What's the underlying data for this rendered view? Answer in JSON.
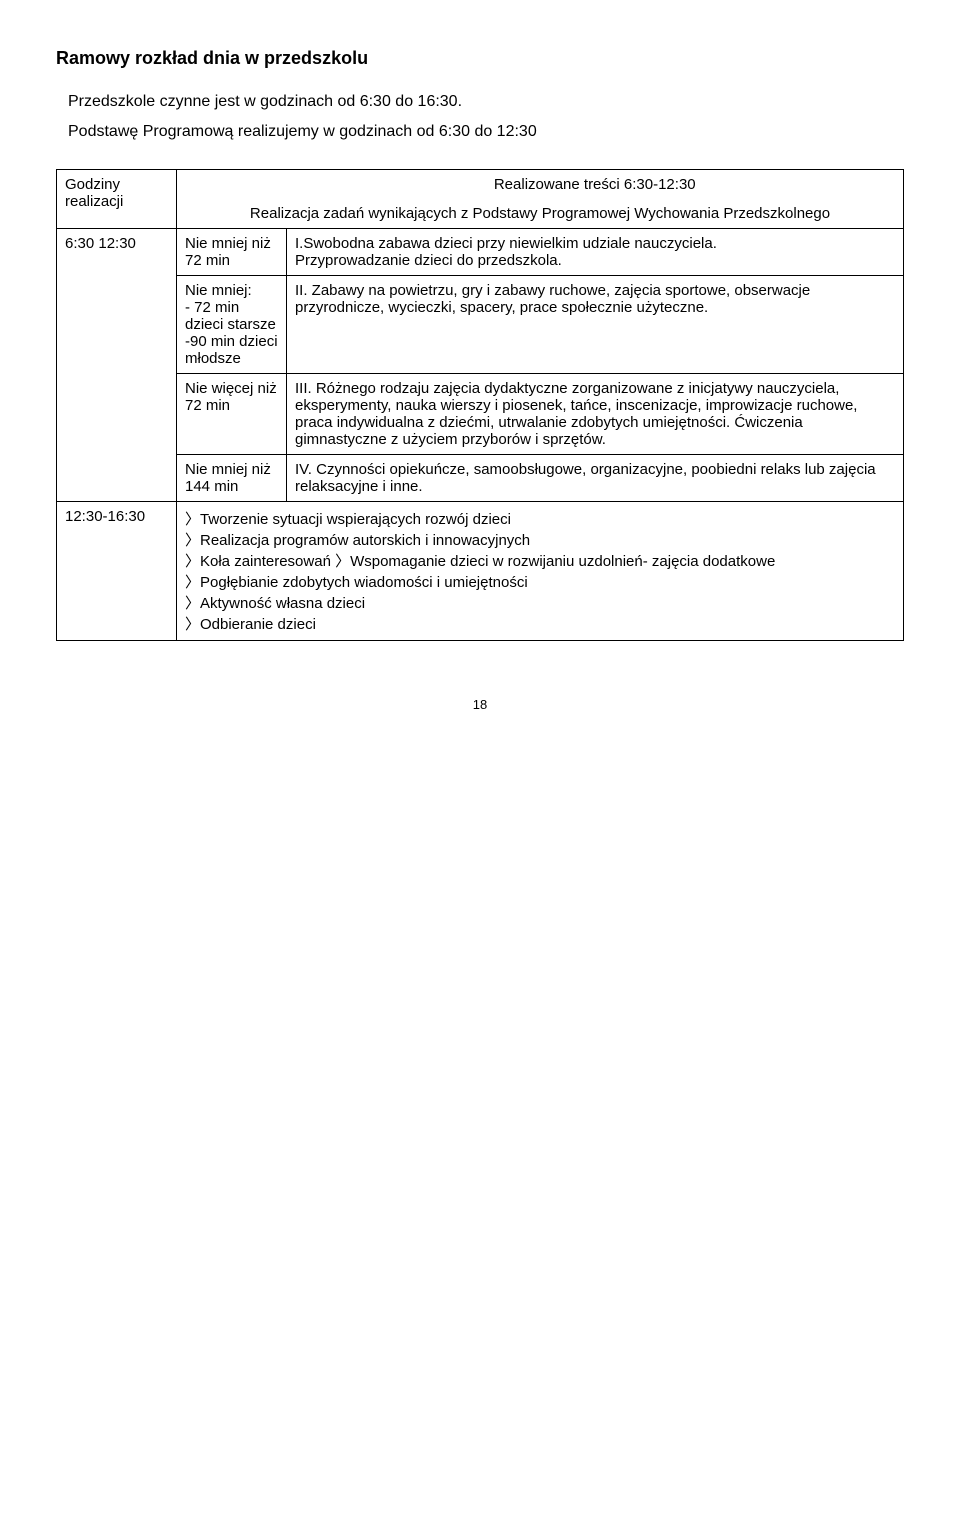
{
  "title": "Ramowy rozkład dnia w przedszkolu",
  "subtitle": "Przedszkole czynne jest w godzinach od 6:30 do 16:30.",
  "subtitle2": "Podstawę Programową realizujemy w godzinach od 6:30 do 12:30",
  "head": {
    "col1": "Godziny realizacji",
    "col3a": "Realizowane treści 6:30-12:30",
    "col3b": "Realizacja zadań wynikających z Podstawy Programowej Wychowania Przedszkolnego"
  },
  "row1": {
    "time": "6:30 12:30",
    "dur": "Nie mniej niż 72 min",
    "text": "I.Swobodna zabawa dzieci przy niewielkim udziale nauczyciela.\nPrzyprowadzanie dzieci do przedszkola."
  },
  "row2": {
    "dur": "Nie mniej:\n- 72 min dzieci starsze\n-90 min dzieci młodsze",
    "text": "II. Zabawy na powietrzu, gry i zabawy ruchowe, zajęcia sportowe, obserwacje przyrodnicze, wycieczki, spacery, prace społecznie użyteczne."
  },
  "row3": {
    "dur": "Nie więcej niż 72 min",
    "text": "III. Różnego rodzaju zajęcia dydaktyczne zorganizowane z inicjatywy nauczyciela, eksperymenty, nauka wierszy i piosenek, tańce, inscenizacje, improwizacje ruchowe, praca indywidualna z dziećmi, utrwalanie zdobytych umiejętności. Ćwiczenia gimnastyczne z użyciem przyborów i sprzętów."
  },
  "row4": {
    "dur": "Nie mniej niż 144 min",
    "text": "IV. Czynności opiekuńcze, samoobsługowe, organizacyjne, poobiedni relaks lub zajęcia relaksacyjne i inne."
  },
  "row5": {
    "time": "12:30-16:30",
    "items": [
      "Tworzenie sytuacji wspierających rozwój dzieci",
      "Realizacja programów autorskich i innowacyjnych",
      "Koła zainteresowań 〉Wspomaganie dzieci w rozwijaniu uzdolnień- zajęcia dodatkowe",
      "Pogłębianie zdobytych wiadomości i umiejętności",
      "Aktywność własna dzieci",
      "Odbieranie dzieci"
    ]
  },
  "page": "18"
}
